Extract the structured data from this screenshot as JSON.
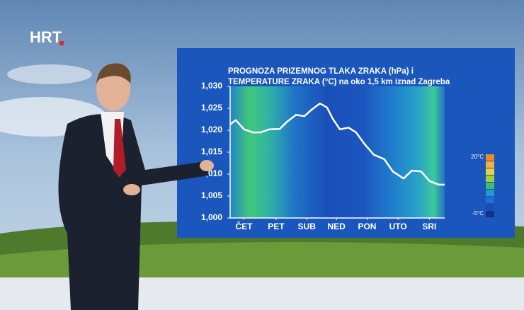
{
  "logo": "HRT",
  "chart_data": {
    "type": "line",
    "title": [
      "PROGNOZA PRIZEMNOG TLAKA ZRAKA (hPa) i",
      "TEMPERATURE ZRAKA (°C) na oko 1,5 km iznad Zagreba"
    ],
    "x": [
      0,
      0.18,
      0.46,
      0.74,
      0.99,
      1.27,
      1.62,
      1.85,
      2.15,
      2.42,
      2.66,
      2.93,
      3.16,
      3.35,
      3.58,
      3.86,
      4.11,
      4.39,
      4.69,
      5.03,
      5.31,
      5.66,
      5.93,
      6.23,
      6.51,
      6.81,
      7.0
    ],
    "series": [
      {
        "color": "#ffffff",
        "values": [
          1021.3,
          1022.3,
          1020.2,
          1019.5,
          1019.5,
          1020.2,
          1020.3,
          1021.9,
          1023.5,
          1023.2,
          1024.7,
          1026.1,
          1025.2,
          1022.6,
          1020.2,
          1020.6,
          1019.5,
          1016.8,
          1014.4,
          1013.4,
          1010.6,
          1009.0,
          1010.8,
          1010.6,
          1008.4,
          1007.6,
          1007.6
        ]
      }
    ],
    "xlim": [
      0,
      7
    ],
    "xticks": [
      {
        "value": 0.45,
        "label": "ČET"
      },
      {
        "value": 1.5,
        "label": "PET"
      },
      {
        "value": 2.5,
        "label": "SUB"
      },
      {
        "value": 3.47,
        "label": "NED"
      },
      {
        "value": 4.47,
        "label": "PON"
      },
      {
        "value": 5.48,
        "label": "UTO"
      },
      {
        "value": 6.5,
        "label": "SRI"
      }
    ],
    "ylim": [
      1000,
      1030
    ],
    "yticks": [
      {
        "value": 1000,
        "label": "1,000"
      },
      {
        "value": 1005,
        "label": "1,005"
      },
      {
        "value": 1010,
        "label": "1,010"
      },
      {
        "value": 1015,
        "label": "1,015"
      },
      {
        "value": 1020,
        "label": "1,020"
      },
      {
        "value": 1025,
        "label": "1,025"
      },
      {
        "value": 1030,
        "label": "1,030"
      }
    ],
    "colorbar": {
      "labels": [
        "20°C",
        "-5°C"
      ],
      "colors": [
        "#f08a24",
        "#f5b040",
        "#e8d23a",
        "#9ccf3e",
        "#3dbb6a",
        "#1e9ad0",
        "#1f6fd0",
        "#1a4cb8",
        "#142f8c"
      ]
    }
  }
}
